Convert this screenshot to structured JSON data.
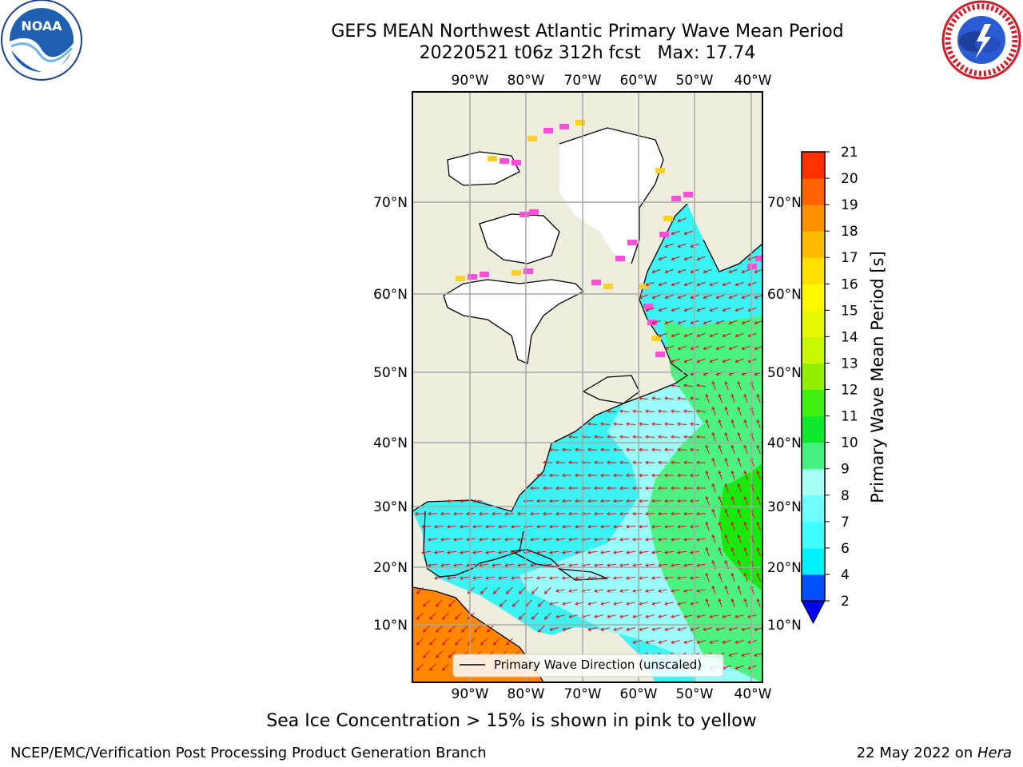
{
  "header": {
    "title_line1": "GEFS MEAN Northwest Atlantic Primary Wave Mean Period",
    "title_line2": "20220521 t06z 312h fcst   Max: 17.74"
  },
  "map": {
    "lon_labels": [
      "90°W",
      "80°W",
      "70°W",
      "60°W",
      "50°W",
      "40°W"
    ],
    "lat_labels": [
      "70°N",
      "60°N",
      "50°N",
      "40°N",
      "30°N",
      "20°N",
      "10°N"
    ],
    "legend_label": "Primary Wave Direction (unscaled)",
    "colors": {
      "land": "#efedde",
      "ice": "#ffffff",
      "wave_low": "#3cf2f2",
      "wave_mid": "#99fcf9",
      "wave_high": "#4ef27e",
      "wave_peak": "#18e80f",
      "caribbean_hot": "#ff8800",
      "arrow": "#d6121b",
      "sea_ice_pink": "#ff4fd8",
      "sea_ice_yellow": "#ffcf2a"
    }
  },
  "colorbar": {
    "label": "Primary Wave Mean Period [s]",
    "ticks": [
      "2",
      "4",
      "6",
      "7",
      "8",
      "9",
      "10",
      "11",
      "12",
      "13",
      "14",
      "15",
      "16",
      "17",
      "18",
      "19",
      "20",
      "21"
    ],
    "colors": [
      "#0050ff",
      "#00f0ff",
      "#40ffff",
      "#70ffff",
      "#a5fff5",
      "#44f080",
      "#10e830",
      "#40f010",
      "#90f000",
      "#c8f800",
      "#e8f800",
      "#fff800",
      "#ffe000",
      "#ffbb00",
      "#ff9000",
      "#ff6400",
      "#ff3000",
      "#ff0000"
    ],
    "under_color": "#0000ff"
  },
  "footer": {
    "note": "Sea Ice Concentration > 15% is shown in pink to yellow",
    "credit": "NCEP/EMC/Verification Post Processing Product Generation Branch",
    "date": "22 May 2022 on ",
    "host": "Hera"
  },
  "logos": {
    "noaa_text": "NOAA",
    "nws_text": "NATIONAL WEATHER SERVICE"
  }
}
